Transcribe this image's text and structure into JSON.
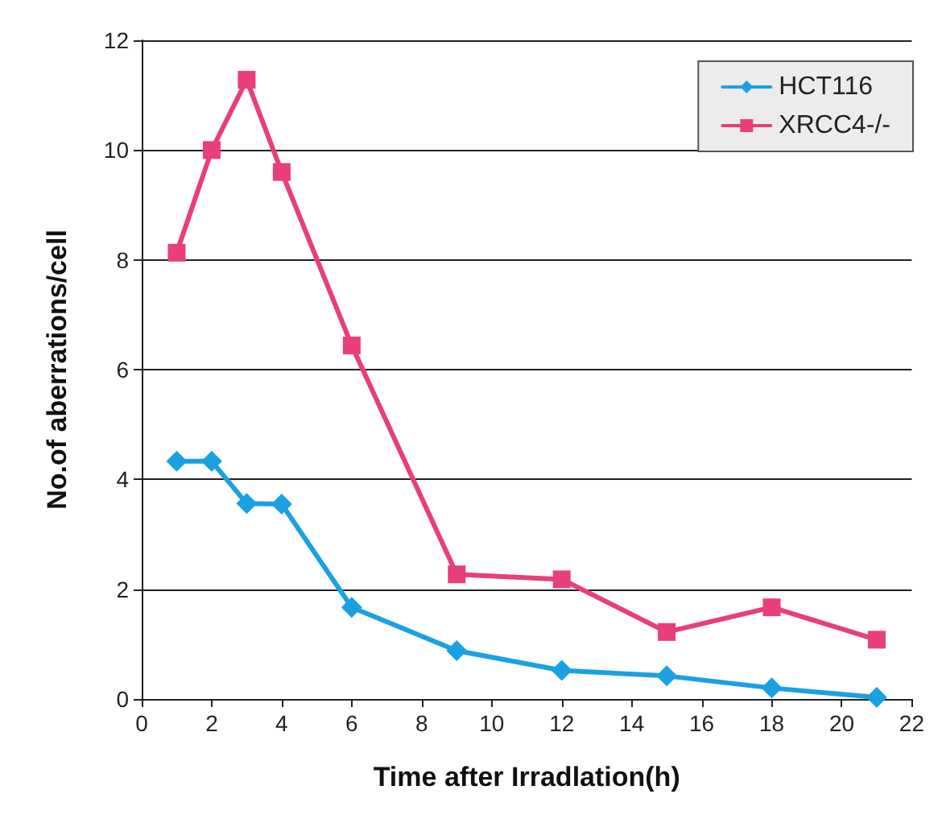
{
  "chart_data": {
    "type": "line",
    "xlabel": "Time after Irradlation(h)",
    "ylabel": "No.of aberrations/cell",
    "xlim": [
      0,
      22
    ],
    "xticks": [
      0,
      2,
      4,
      6,
      8,
      10,
      12,
      14,
      16,
      18,
      20,
      22
    ],
    "ylim": [
      0,
      12
    ],
    "yticks": [
      0,
      2,
      4,
      6,
      8,
      10,
      12
    ],
    "grid": "y",
    "legend": "top right",
    "line_style": "solid",
    "series": [
      {
        "name": "HCT116",
        "color": "#1ba1e2",
        "marker": "diamond",
        "x": [
          1,
          2,
          3,
          4,
          6,
          9,
          12,
          15,
          18,
          21
        ],
        "values": [
          4.33,
          4.33,
          3.56,
          3.55,
          1.67,
          0.88,
          0.52,
          0.42,
          0.2,
          0.03
        ]
      },
      {
        "name": "XRCC4-/-",
        "color": "#e83e7c",
        "marker": "square",
        "x": [
          1,
          2,
          3,
          4,
          6,
          9,
          12,
          15,
          18,
          21
        ],
        "values": [
          8.13,
          10,
          11.28,
          9.6,
          6.44,
          2.27,
          2.18,
          1.22,
          1.67,
          1.08
        ]
      }
    ]
  }
}
